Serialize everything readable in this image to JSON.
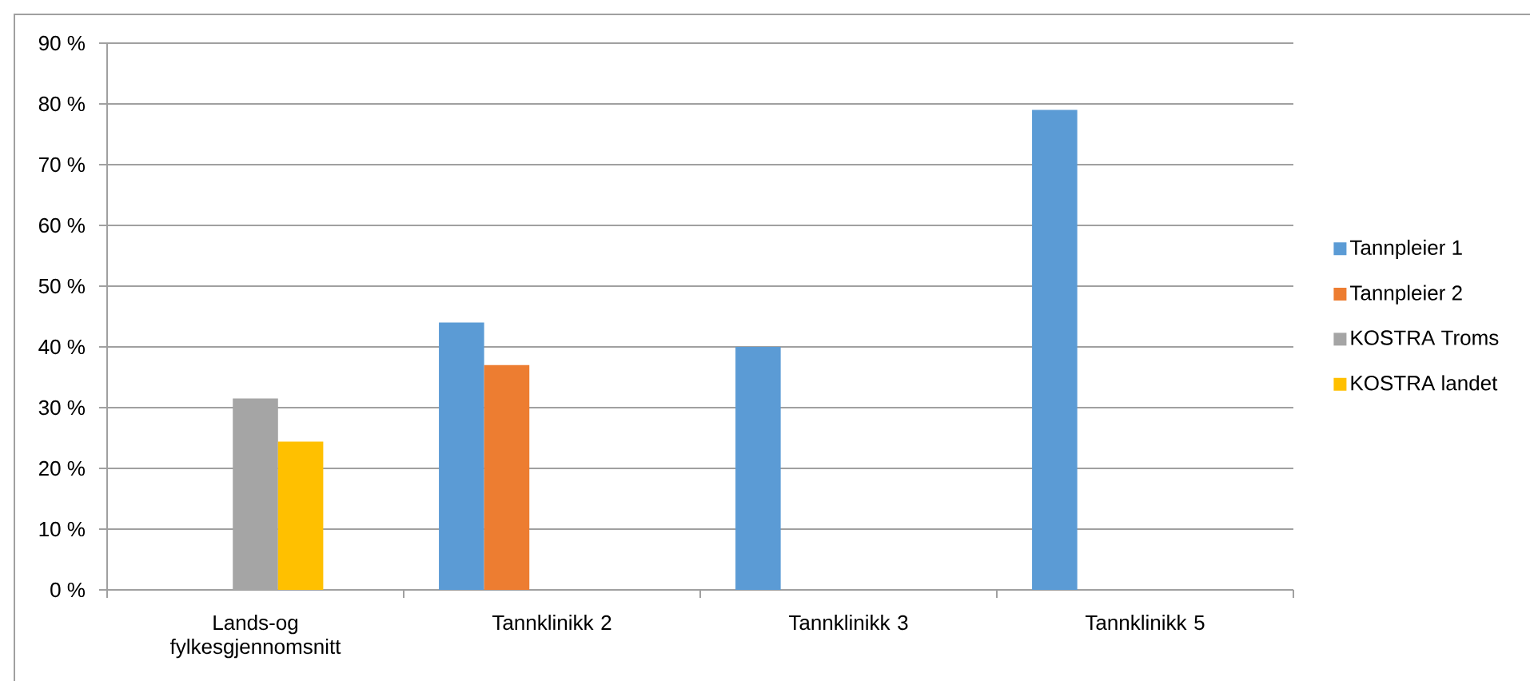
{
  "chart_data": {
    "type": "bar",
    "categories": [
      "Lands-og fylkesgjennomsnitt",
      "Tannklinikk 2",
      "Tannklinikk 3",
      "Tannklinikk 5"
    ],
    "series": [
      {
        "name": "Tannpleier 1",
        "color": "#5b9bd5",
        "values": [
          null,
          44,
          40,
          79
        ]
      },
      {
        "name": "Tannpleier 2",
        "color": "#ed7d31",
        "values": [
          null,
          37,
          null,
          null
        ]
      },
      {
        "name": "KOSTRA Troms",
        "color": "#a5a5a5",
        "values": [
          31.5,
          null,
          null,
          null
        ]
      },
      {
        "name": "KOSTRA landet",
        "color": "#ffc000",
        "values": [
          24.4,
          null,
          null,
          null
        ]
      }
    ],
    "ylim": [
      0,
      90
    ],
    "yticks": [
      {
        "value": 0,
        "label": "0 %"
      },
      {
        "value": 10,
        "label": "10 %"
      },
      {
        "value": 20,
        "label": "20 %"
      },
      {
        "value": 30,
        "label": "30 %"
      },
      {
        "value": 40,
        "label": "40 %"
      },
      {
        "value": 50,
        "label": "50 %"
      },
      {
        "value": 60,
        "label": "60 %"
      },
      {
        "value": 70,
        "label": "70 %"
      },
      {
        "value": 80,
        "label": "80 %"
      },
      {
        "value": 90,
        "label": "90 %"
      }
    ],
    "grid": "y",
    "legend": "right"
  }
}
